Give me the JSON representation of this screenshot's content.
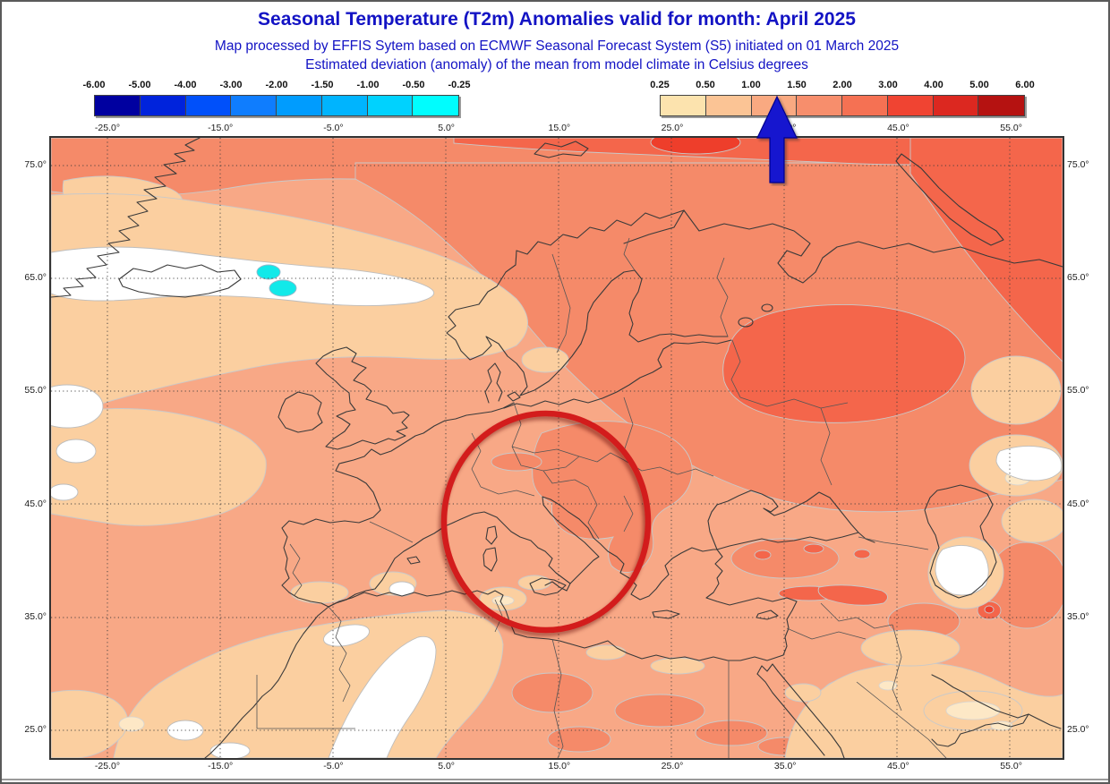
{
  "header": {
    "title": "Seasonal Temperature (T2m) Anomalies valid for month: April 2025",
    "subtitle1": "Map processed by EFFIS Sytem based on ECMWF Seasonal Forecast System (S5) initiated on 01 March 2025",
    "subtitle2": "Estimated deviation (anomaly) of the mean from model climate in Celsius degrees",
    "text_color": "#1313C4"
  },
  "legends": {
    "negative": {
      "tick_labels": [
        "-6.00",
        "-5.00",
        "-4.00",
        "-3.00",
        "-2.00",
        "-1.50",
        "-1.00",
        "-0.50",
        "-0.25"
      ],
      "cell_colors": [
        "#0000A0",
        "#0023DC",
        "#0050FA",
        "#0F7DFE",
        "#009CFE",
        "#00B4FE",
        "#00D2FE",
        "#00FDFE"
      ]
    },
    "positive": {
      "tick_labels": [
        "0.25",
        "0.50",
        "1.00",
        "1.50",
        "2.00",
        "3.00",
        "4.00",
        "5.00",
        "6.00"
      ],
      "cell_colors": [
        "#FCE3AE",
        "#FBC495",
        "#F9A981",
        "#F78E6C",
        "#F57153",
        "#F04432",
        "#DC2820",
        "#B51211"
      ]
    }
  },
  "map": {
    "lat_labels": [
      "75.0°",
      "65.0°",
      "55.0°",
      "45.0°",
      "35.0°",
      "25.0°"
    ],
    "lon_labels": [
      "-25.0°",
      "-15.0°",
      "-5.0°",
      "5.0°",
      "15.0°",
      "25.0°",
      "35.0°",
      "45.0°",
      "55.0°"
    ],
    "palette": {
      "anomaly_1_to_1_5": "#F8A886",
      "anomaly_1_5_to_2": "#F58A69",
      "anomaly_2_to_3": "#F4664B",
      "anomaly_3_to_4": "#EE3E2B",
      "anomaly_0_5_to_1": "#FBCFA0",
      "anomaly_0_25_to_0_5": "#FDE8C6",
      "anomaly_below_0_25": "#FFFFFF",
      "anomaly_neg_0_25_to_neg_0_5": "#12E9E9"
    }
  },
  "annotations": {
    "highlight_circle": {
      "color": "#D31C1C",
      "meaning": "region of interest over central Europe and central Mediterranean"
    },
    "legend_arrow": {
      "color": "#1515CF",
      "meaning": "arrow pointing at the +1.00 to +1.50 anomaly legend class"
    }
  }
}
